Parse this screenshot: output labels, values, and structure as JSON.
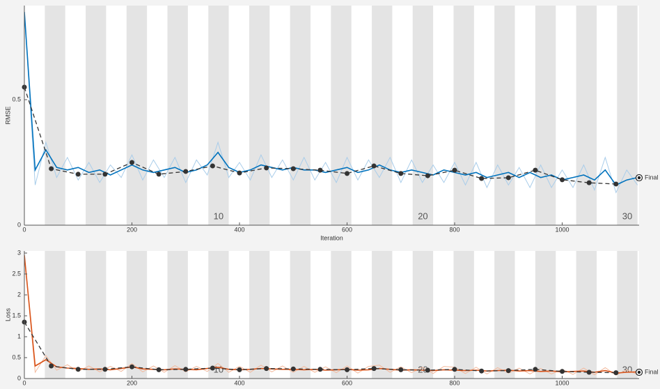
{
  "chart_data": [
    {
      "type": "line",
      "ylabel": "RMSE",
      "xlabel": "Iteration",
      "xlim": [
        0,
        1143
      ],
      "xticks": [
        0,
        200,
        400,
        600,
        800,
        1000
      ],
      "ylim": [
        0,
        0.875
      ],
      "yticks": [
        0,
        0.5
      ],
      "epochs": {
        "count": 30,
        "iterations_per_epoch": 38,
        "labels": [
          10,
          20,
          30
        ]
      },
      "series": [
        {
          "role": "raw",
          "color": "#a9cdea",
          "x": [
            0,
            20,
            40,
            60,
            80,
            100,
            120,
            140,
            160,
            180,
            200,
            220,
            240,
            260,
            280,
            300,
            320,
            340,
            360,
            380,
            400,
            420,
            440,
            460,
            480,
            500,
            520,
            540,
            560,
            580,
            600,
            620,
            640,
            660,
            680,
            700,
            720,
            740,
            760,
            780,
            800,
            820,
            840,
            860,
            880,
            900,
            920,
            940,
            960,
            980,
            1000,
            1020,
            1040,
            1060,
            1080,
            1100,
            1120,
            1140
          ],
          "values": [
            0.85,
            0.16,
            0.33,
            0.19,
            0.27,
            0.18,
            0.25,
            0.17,
            0.24,
            0.19,
            0.28,
            0.18,
            0.26,
            0.19,
            0.27,
            0.17,
            0.26,
            0.2,
            0.33,
            0.19,
            0.25,
            0.18,
            0.28,
            0.19,
            0.26,
            0.18,
            0.27,
            0.18,
            0.25,
            0.17,
            0.27,
            0.18,
            0.26,
            0.19,
            0.27,
            0.17,
            0.26,
            0.17,
            0.24,
            0.17,
            0.25,
            0.16,
            0.25,
            0.15,
            0.24,
            0.16,
            0.23,
            0.15,
            0.24,
            0.15,
            0.22,
            0.15,
            0.24,
            0.14,
            0.27,
            0.13,
            0.22,
            0.16
          ]
        },
        {
          "role": "smoothed",
          "color": "#0072bd",
          "x": [
            0,
            20,
            40,
            60,
            80,
            100,
            120,
            140,
            160,
            180,
            200,
            220,
            240,
            260,
            280,
            300,
            320,
            340,
            360,
            380,
            400,
            420,
            440,
            460,
            480,
            500,
            520,
            540,
            560,
            580,
            600,
            620,
            640,
            660,
            680,
            700,
            720,
            740,
            760,
            780,
            800,
            820,
            840,
            860,
            880,
            900,
            920,
            940,
            960,
            980,
            1000,
            1020,
            1040,
            1060,
            1080,
            1100,
            1120,
            1140
          ],
          "values": [
            0.85,
            0.22,
            0.3,
            0.23,
            0.22,
            0.23,
            0.21,
            0.22,
            0.2,
            0.22,
            0.24,
            0.22,
            0.21,
            0.22,
            0.23,
            0.21,
            0.22,
            0.24,
            0.29,
            0.23,
            0.21,
            0.22,
            0.24,
            0.23,
            0.22,
            0.23,
            0.22,
            0.22,
            0.21,
            0.22,
            0.23,
            0.21,
            0.22,
            0.24,
            0.22,
            0.21,
            0.22,
            0.21,
            0.2,
            0.22,
            0.21,
            0.2,
            0.21,
            0.19,
            0.2,
            0.21,
            0.19,
            0.21,
            0.19,
            0.2,
            0.18,
            0.19,
            0.2,
            0.18,
            0.22,
            0.16,
            0.18,
            0.19
          ]
        },
        {
          "role": "validation",
          "color": "#333333",
          "x": [
            0,
            50,
            100,
            150,
            200,
            250,
            300,
            350,
            400,
            450,
            500,
            550,
            600,
            650,
            700,
            750,
            800,
            850,
            900,
            950,
            1000,
            1050,
            1100
          ],
          "values": [
            0.55,
            0.225,
            0.203,
            0.203,
            0.25,
            0.203,
            0.214,
            0.236,
            0.208,
            0.228,
            0.225,
            0.219,
            0.206,
            0.236,
            0.206,
            0.197,
            0.219,
            0.186,
            0.189,
            0.219,
            0.181,
            0.169,
            0.164
          ]
        }
      ],
      "final": {
        "x": 1143,
        "value": 0.189,
        "label": "Final"
      }
    },
    {
      "type": "line",
      "ylabel": "Loss",
      "xlabel": "Iteration",
      "xlim": [
        0,
        1143
      ],
      "xticks": [
        0,
        200,
        400,
        600,
        800,
        1000
      ],
      "ylim": [
        0,
        3.05
      ],
      "yticks": [
        0,
        0.5,
        1,
        1.5,
        2,
        2.5,
        3
      ],
      "epochs": {
        "count": 30,
        "iterations_per_epoch": 38,
        "labels": [
          10,
          20,
          30
        ]
      },
      "series": [
        {
          "role": "raw",
          "color": "#f3b99c",
          "x": [
            0,
            20,
            40,
            60,
            80,
            100,
            120,
            140,
            160,
            180,
            200,
            220,
            240,
            260,
            280,
            300,
            320,
            340,
            360,
            380,
            400,
            420,
            440,
            460,
            480,
            500,
            520,
            540,
            560,
            580,
            600,
            620,
            640,
            660,
            680,
            700,
            720,
            740,
            760,
            780,
            800,
            820,
            840,
            860,
            880,
            900,
            920,
            940,
            960,
            980,
            1000,
            1020,
            1040,
            1060,
            1080,
            1100,
            1120,
            1140
          ],
          "values": [
            2.95,
            0.15,
            0.55,
            0.2,
            0.33,
            0.17,
            0.3,
            0.16,
            0.29,
            0.17,
            0.36,
            0.16,
            0.3,
            0.15,
            0.31,
            0.16,
            0.29,
            0.17,
            0.36,
            0.15,
            0.29,
            0.15,
            0.32,
            0.16,
            0.3,
            0.15,
            0.29,
            0.15,
            0.28,
            0.14,
            0.3,
            0.13,
            0.29,
            0.32,
            0.15,
            0.28,
            0.14,
            0.27,
            0.12,
            0.29,
            0.27,
            0.12,
            0.27,
            0.11,
            0.26,
            0.13,
            0.25,
            0.11,
            0.24,
            0.11,
            0.22,
            0.1,
            0.25,
            0.09,
            0.26,
            0.08,
            0.21,
            0.1
          ]
        },
        {
          "role": "smoothed",
          "color": "#d95319",
          "x": [
            0,
            20,
            40,
            60,
            80,
            100,
            120,
            140,
            160,
            180,
            200,
            220,
            240,
            260,
            280,
            300,
            320,
            340,
            360,
            380,
            400,
            420,
            440,
            460,
            480,
            500,
            520,
            540,
            560,
            580,
            600,
            620,
            640,
            660,
            680,
            700,
            720,
            740,
            760,
            780,
            800,
            820,
            840,
            860,
            880,
            900,
            920,
            940,
            960,
            980,
            1000,
            1020,
            1040,
            1060,
            1080,
            1100,
            1120,
            1140
          ],
          "values": [
            2.95,
            0.3,
            0.45,
            0.28,
            0.25,
            0.24,
            0.22,
            0.23,
            0.21,
            0.24,
            0.28,
            0.23,
            0.22,
            0.21,
            0.23,
            0.22,
            0.21,
            0.24,
            0.27,
            0.22,
            0.21,
            0.22,
            0.24,
            0.23,
            0.22,
            0.22,
            0.21,
            0.22,
            0.2,
            0.21,
            0.22,
            0.2,
            0.21,
            0.24,
            0.22,
            0.2,
            0.21,
            0.2,
            0.19,
            0.21,
            0.2,
            0.19,
            0.2,
            0.18,
            0.19,
            0.2,
            0.18,
            0.19,
            0.17,
            0.18,
            0.16,
            0.17,
            0.18,
            0.15,
            0.19,
            0.13,
            0.15,
            0.16
          ]
        },
        {
          "role": "validation",
          "color": "#333333",
          "x": [
            0,
            50,
            100,
            150,
            200,
            250,
            300,
            350,
            400,
            450,
            500,
            550,
            600,
            650,
            700,
            750,
            800,
            850,
            900,
            950,
            1000,
            1050,
            1100
          ],
          "values": [
            1.35,
            0.3,
            0.22,
            0.22,
            0.28,
            0.21,
            0.22,
            0.25,
            0.21,
            0.24,
            0.23,
            0.22,
            0.21,
            0.24,
            0.21,
            0.2,
            0.22,
            0.18,
            0.19,
            0.22,
            0.17,
            0.15,
            0.14
          ]
        }
      ],
      "final": {
        "x": 1143,
        "value": 0.15,
        "label": "Final"
      }
    }
  ]
}
